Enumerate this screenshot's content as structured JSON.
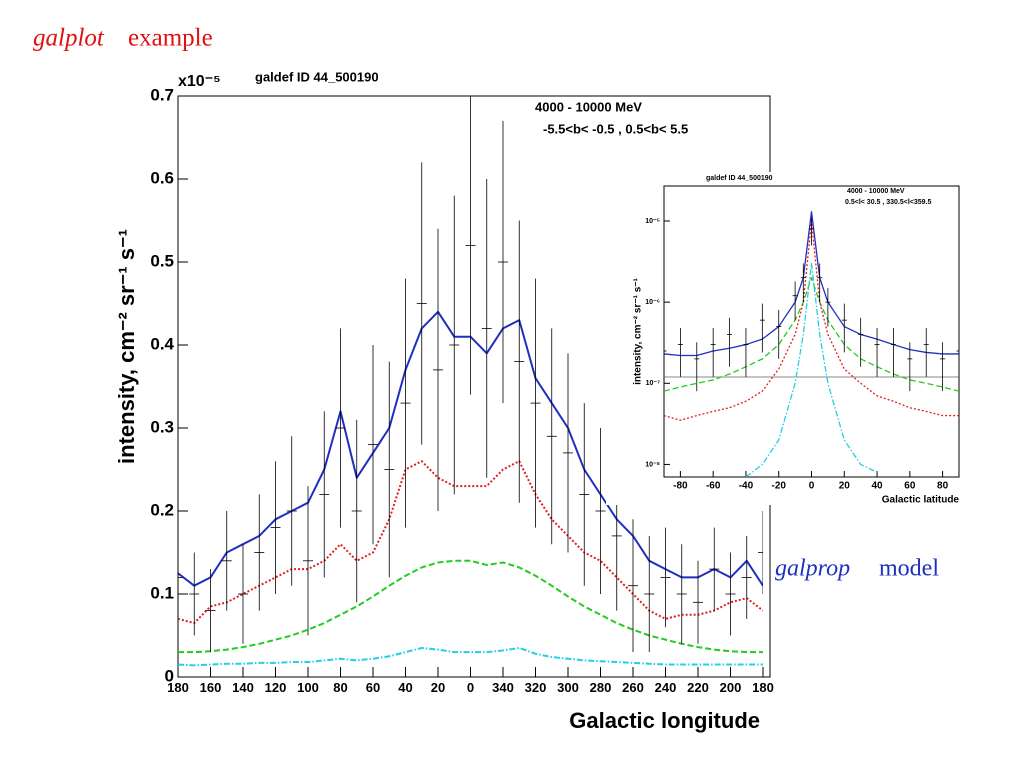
{
  "slide": {
    "title_italic": "galplot",
    "title_rest": "example",
    "note_italic": "galprop",
    "note_rest": "model"
  },
  "chart_data": [
    {
      "type": "line",
      "title": "galdef ID 44_500190",
      "annotations": [
        "4000 - 10000 MeV",
        "-5.5<b< -0.5 ,   0.5<b<  5.5"
      ],
      "multiplier": "x10⁻⁵",
      "ylabel": "intensity, cm⁻² sr⁻¹ s⁻¹",
      "xlabel": "Galactic longitude",
      "x": [
        180,
        170,
        160,
        150,
        140,
        130,
        120,
        110,
        100,
        90,
        80,
        70,
        60,
        50,
        40,
        30,
        20,
        10,
        0,
        -10,
        -20,
        -30,
        -40,
        -50,
        -60,
        -70,
        -80,
        -90,
        -100,
        -110,
        -120,
        -130,
        -140,
        -150,
        -160,
        -170,
        -180
      ],
      "series": [
        {
          "color": "#1f2fbf",
          "style": "solid",
          "values": [
            0.125,
            0.11,
            0.12,
            0.15,
            0.16,
            0.17,
            0.19,
            0.2,
            0.21,
            0.25,
            0.32,
            0.24,
            0.27,
            0.3,
            0.37,
            0.42,
            0.44,
            0.41,
            0.41,
            0.39,
            0.42,
            0.43,
            0.36,
            0.33,
            0.3,
            0.25,
            0.22,
            0.19,
            0.17,
            0.14,
            0.13,
            0.12,
            0.12,
            0.13,
            0.12,
            0.14,
            0.11
          ]
        },
        {
          "color": "#e02020",
          "style": "dotted",
          "values": [
            0.07,
            0.065,
            0.085,
            0.09,
            0.1,
            0.11,
            0.12,
            0.13,
            0.13,
            0.14,
            0.16,
            0.14,
            0.15,
            0.19,
            0.25,
            0.26,
            0.24,
            0.23,
            0.23,
            0.23,
            0.25,
            0.26,
            0.22,
            0.19,
            0.17,
            0.15,
            0.14,
            0.12,
            0.1,
            0.08,
            0.07,
            0.075,
            0.075,
            0.08,
            0.09,
            0.095,
            0.08
          ]
        },
        {
          "color": "#22cc22",
          "style": "dashed",
          "values": [
            0.03,
            0.03,
            0.031,
            0.033,
            0.036,
            0.04,
            0.045,
            0.05,
            0.057,
            0.065,
            0.075,
            0.085,
            0.097,
            0.11,
            0.122,
            0.132,
            0.138,
            0.14,
            0.14,
            0.135,
            0.138,
            0.132,
            0.122,
            0.11,
            0.097,
            0.085,
            0.075,
            0.065,
            0.057,
            0.05,
            0.045,
            0.04,
            0.036,
            0.033,
            0.031,
            0.03,
            0.03
          ]
        },
        {
          "color": "#22d0e0",
          "style": "dashdot",
          "values": [
            0.015,
            0.014,
            0.015,
            0.016,
            0.016,
            0.017,
            0.017,
            0.018,
            0.018,
            0.02,
            0.022,
            0.02,
            0.022,
            0.025,
            0.03,
            0.035,
            0.033,
            0.03,
            0.03,
            0.03,
            0.032,
            0.035,
            0.028,
            0.024,
            0.022,
            0.02,
            0.019,
            0.018,
            0.017,
            0.016,
            0.015,
            0.015,
            0.015,
            0.015,
            0.015,
            0.015,
            0.015
          ]
        },
        {
          "color": "#000000",
          "style": "errorbar",
          "values": [
            0.12,
            0.1,
            0.08,
            0.14,
            0.1,
            0.15,
            0.18,
            0.2,
            0.14,
            0.22,
            0.3,
            0.2,
            0.28,
            0.25,
            0.33,
            0.45,
            0.37,
            0.4,
            0.52,
            0.42,
            0.5,
            0.38,
            0.33,
            0.29,
            0.27,
            0.22,
            0.2,
            0.17,
            0.11,
            0.1,
            0.12,
            0.1,
            0.09,
            0.13,
            0.1,
            0.12,
            0.15
          ],
          "errors": [
            0.05,
            0.05,
            0.05,
            0.06,
            0.06,
            0.07,
            0.08,
            0.09,
            0.09,
            0.1,
            0.12,
            0.11,
            0.12,
            0.13,
            0.15,
            0.17,
            0.17,
            0.18,
            0.18,
            0.18,
            0.17,
            0.17,
            0.15,
            0.13,
            0.12,
            0.11,
            0.1,
            0.09,
            0.08,
            0.07,
            0.06,
            0.06,
            0.05,
            0.05,
            0.05,
            0.05,
            0.05
          ]
        }
      ],
      "xlim": [
        180,
        -180
      ],
      "xticks": [
        180,
        160,
        140,
        120,
        100,
        80,
        60,
        40,
        20,
        0,
        {
          "value": -20,
          "label": "340"
        },
        {
          "value": -40,
          "label": "320"
        },
        {
          "value": -60,
          "label": "300"
        },
        {
          "value": -80,
          "label": "280"
        },
        {
          "value": -100,
          "label": "260"
        },
        {
          "value": -120,
          "label": "240"
        },
        {
          "value": -140,
          "label": "220"
        },
        {
          "value": -160,
          "label": "200"
        },
        {
          "value": -180,
          "label": "180"
        }
      ],
      "ylim": [
        0,
        0.7
      ],
      "yticks": [
        0,
        0.1,
        0.2,
        0.3,
        0.4,
        0.5,
        0.6,
        0.7
      ],
      "log": false
    },
    {
      "type": "line",
      "title": "galdef ID 44_500190",
      "annotations": [
        "4000 - 10000 MeV",
        "0.5<l< 30.5 , 330.5<l<359.5"
      ],
      "ylabel": "intensity, cm⁻² sr⁻¹ s⁻¹",
      "xlabel": "Galactic latitude",
      "x": [
        -90,
        -80,
        -70,
        -60,
        -50,
        -40,
        -30,
        -20,
        -10,
        -5,
        0,
        5,
        10,
        20,
        30,
        40,
        50,
        60,
        70,
        80,
        90
      ],
      "series": [
        {
          "color": "#1f2fbf",
          "style": "solid",
          "values": [
            2.3e-07,
            2.2e-07,
            2.2e-07,
            2.5e-07,
            2.7e-07,
            3e-07,
            3.5e-07,
            5e-07,
            1e-06,
            2e-06,
            1.3e-05,
            2e-06,
            1e-06,
            5e-07,
            4e-07,
            3.5e-07,
            3e-07,
            2.6e-07,
            2.4e-07,
            2.3e-07,
            2.3e-07
          ]
        },
        {
          "color": "#22cc22",
          "style": "dashed",
          "values": [
            8e-08,
            9e-08,
            1e-07,
            1.1e-07,
            1.3e-07,
            1.6e-07,
            2e-07,
            3e-07,
            6e-07,
            1e-06,
            2e-06,
            1e-06,
            6e-07,
            3e-07,
            2e-07,
            1.6e-07,
            1.3e-07,
            1.1e-07,
            1e-07,
            9e-08,
            8e-08
          ]
        },
        {
          "color": "#e02020",
          "style": "dotted",
          "values": [
            4e-08,
            3.5e-08,
            4e-08,
            4.5e-08,
            5e-08,
            6e-08,
            8e-08,
            1.5e-07,
            4e-07,
            1e-06,
            1e-05,
            1e-06,
            4e-07,
            1.5e-07,
            1e-07,
            7e-08,
            6e-08,
            5e-08,
            4.5e-08,
            4e-08,
            4e-08
          ]
        },
        {
          "color": "#22d0e0",
          "style": "dashdot",
          "values": [
            null,
            null,
            null,
            null,
            null,
            7e-09,
            1e-08,
            2e-08,
            1e-07,
            4e-07,
            3e-06,
            4e-07,
            1e-07,
            2e-08,
            1e-08,
            8e-09,
            null,
            null,
            null,
            null,
            null
          ]
        },
        {
          "color": "#000000",
          "style": "errorbar",
          "values": [
            2.5e-07,
            3e-07,
            2e-07,
            3e-07,
            4e-07,
            3e-07,
            6e-07,
            5e-07,
            1.2e-06,
            2e-06,
            8e-06,
            2e-06,
            1e-06,
            6e-07,
            4e-07,
            3e-07,
            3e-07,
            2e-07,
            3e-07,
            2e-07,
            2.5e-07
          ],
          "errors": [
            1.5e-07,
            1.8e-07,
            1.2e-07,
            1.8e-07,
            2.4e-07,
            1.8e-07,
            3.6e-07,
            3e-07,
            6e-07,
            1e-06,
            3e-06,
            1e-06,
            5e-07,
            3.6e-07,
            2.4e-07,
            1.8e-07,
            1.8e-07,
            1.2e-07,
            1.8e-07,
            1.2e-07,
            1.5e-07
          ]
        }
      ],
      "xlim": [
        -90,
        90
      ],
      "xticks": [
        -80,
        -60,
        -40,
        -20,
        0,
        20,
        40,
        60,
        80
      ],
      "ylim": [
        7e-09,
        2.7e-05
      ],
      "yticks": [
        {
          "value": 1e-08,
          "label": "10⁻⁸"
        },
        {
          "value": 1e-07,
          "label": "10⁻⁷"
        },
        {
          "value": 1e-06,
          "label": "10⁻⁶"
        },
        {
          "value": 1e-05,
          "label": "10⁻⁵"
        }
      ],
      "log": true
    }
  ]
}
